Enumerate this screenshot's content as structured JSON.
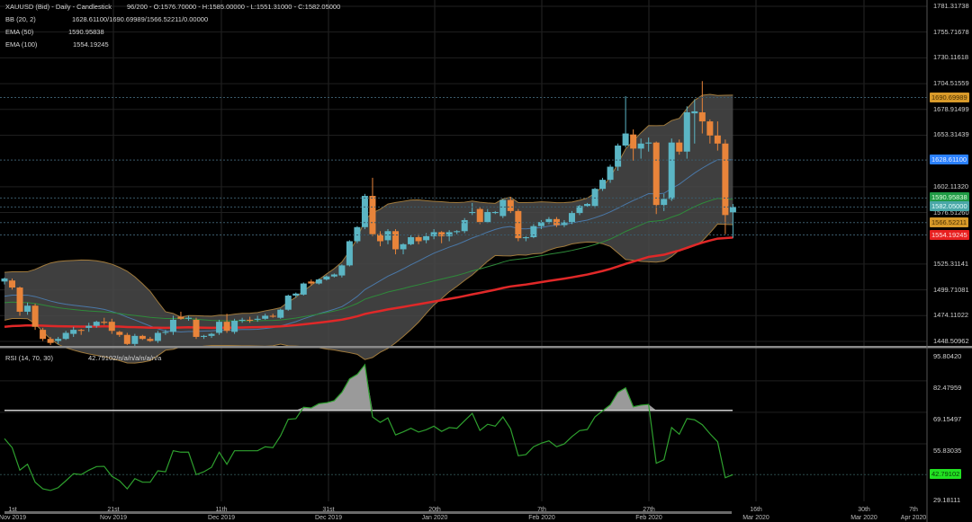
{
  "header": {
    "title": "XAUUSD (Bid) - Daily - Candlestick",
    "ohlc": "96/200 - O:1576.70000 - H:1585.00000 - L:1551.31000 - C:1582.05000",
    "indicators": [
      {
        "label": "BB (20, 2)",
        "value": "1628.61100/1690.69989/1566.52211/0.00000"
      },
      {
        "label": "EMA (50)",
        "value": "1590.95838"
      },
      {
        "label": "EMA (100)",
        "value": "1554.19245"
      }
    ],
    "rsi": {
      "label": "RSI (14, 70, 30)",
      "value": "42.79102/n/a/n/a/n/a/n/a"
    }
  },
  "colors": {
    "bull": "#5bb5c4",
    "bear": "#e8843a",
    "bb_band": "#a07a3c",
    "bb_mid": "#4a78a8",
    "ema50": "#2e8b3a",
    "ema100": "#e02828",
    "rsi": "#2ea02e"
  },
  "price_axis": {
    "ticks": [
      "1781.31738",
      "1755.71678",
      "1730.11618",
      "1704.51559",
      "1678.91499",
      "1653.31439",
      "1602.11320",
      "1576.51260",
      "1525.31141",
      "1499.71081",
      "1474.11022",
      "1448.50962"
    ],
    "markers": [
      {
        "label": "1690.69989",
        "value": 1690.7,
        "bg": "#d89a2a",
        "fg": "#4a3000"
      },
      {
        "label": "1628.61100",
        "value": 1628.61,
        "bg": "#2a80ff",
        "fg": "#e8f0ff"
      },
      {
        "label": "1590.95838",
        "value": 1590.96,
        "bg": "#1f9a45",
        "fg": "#e0ffe0"
      },
      {
        "label": "1582.05000",
        "value": 1582.05,
        "bg": "#4aa7a7",
        "fg": "#e8ffff"
      },
      {
        "label": "1566.52211",
        "value": 1566.52,
        "bg": "#d89a2a",
        "fg": "#4a3000"
      },
      {
        "label": "1554.19245",
        "value": 1554.19,
        "bg": "#e82020",
        "fg": "#ffe0e0"
      }
    ]
  },
  "rsi_axis": {
    "ticks": [
      "95.80420",
      "82.47959",
      "69.15497",
      "55.83035",
      "29.18111"
    ],
    "marker": {
      "label": "42.79102",
      "value": 42.79,
      "bg": "#22e022",
      "fg": "#064006"
    }
  },
  "time_axis": [
    {
      "day": "1st",
      "month": "Nov 2019"
    },
    {
      "day": "21st",
      "month": "Nov 2019"
    },
    {
      "day": "11th",
      "month": "Dec 2019"
    },
    {
      "day": "31st",
      "month": "Dec 2019"
    },
    {
      "day": "20th",
      "month": "Jan 2020"
    },
    {
      "day": "7th",
      "month": "Feb 2020"
    },
    {
      "day": "27th",
      "month": "Feb 2020"
    },
    {
      "day": "16th",
      "month": "Mar 2020"
    },
    {
      "day": "30th",
      "month": "Mar 2020"
    },
    {
      "day": "7th",
      "month": "Apr 2020"
    }
  ],
  "chart_data": {
    "type": "candlestick",
    "ylim": [
      1448.51,
      1781.32
    ],
    "rsi_ylim": [
      29.18,
      95.8
    ],
    "rsi_levels": [
      70,
      30
    ],
    "candles": [
      [
        1508,
        1512,
        1505,
        1511
      ],
      [
        1509,
        1511,
        1500,
        1502
      ],
      [
        1502,
        1503,
        1474,
        1478
      ],
      [
        1478,
        1487,
        1475,
        1484
      ],
      [
        1484,
        1486,
        1460,
        1463
      ],
      [
        1460,
        1462,
        1449,
        1451
      ],
      [
        1451,
        1453,
        1445,
        1447
      ],
      [
        1449,
        1453,
        1446,
        1451
      ],
      [
        1451,
        1459,
        1450,
        1457
      ],
      [
        1456,
        1463,
        1453,
        1460
      ],
      [
        1460,
        1461,
        1455,
        1459
      ],
      [
        1462,
        1467,
        1458,
        1464
      ],
      [
        1464,
        1469,
        1462,
        1468
      ],
      [
        1468,
        1472,
        1465,
        1467
      ],
      [
        1468,
        1471,
        1456,
        1459
      ],
      [
        1458,
        1459,
        1453,
        1455
      ],
      [
        1455,
        1457,
        1445,
        1446
      ],
      [
        1446,
        1456,
        1444,
        1454
      ],
      [
        1454,
        1455,
        1450,
        1451
      ],
      [
        1451,
        1453,
        1448,
        1449
      ],
      [
        1449,
        1459,
        1447,
        1457
      ],
      [
        1457,
        1460,
        1455,
        1458
      ],
      [
        1458,
        1474,
        1455,
        1470
      ],
      [
        1473,
        1478,
        1470,
        1471
      ],
      [
        1471,
        1474,
        1469,
        1472
      ],
      [
        1470,
        1472,
        1451,
        1453
      ],
      [
        1453,
        1455,
        1451,
        1454
      ],
      [
        1454,
        1457,
        1452,
        1456
      ],
      [
        1457,
        1470,
        1455,
        1468
      ],
      [
        1468,
        1476,
        1457,
        1459
      ],
      [
        1458,
        1471,
        1456,
        1469
      ],
      [
        1469,
        1472,
        1467,
        1470
      ],
      [
        1470,
        1473,
        1467,
        1469
      ],
      [
        1470,
        1474,
        1468,
        1471
      ],
      [
        1471,
        1476,
        1470,
        1474
      ],
      [
        1474,
        1476,
        1472,
        1473
      ],
      [
        1472,
        1481,
        1471,
        1480
      ],
      [
        1480,
        1495,
        1479,
        1494
      ],
      [
        1494,
        1497,
        1492,
        1496
      ],
      [
        1495,
        1507,
        1494,
        1506
      ],
      [
        1508,
        1510,
        1504,
        1506
      ],
      [
        1506,
        1511,
        1505,
        1510
      ],
      [
        1510,
        1514,
        1509,
        1513
      ],
      [
        1513,
        1516,
        1512,
        1515
      ],
      [
        1514,
        1525,
        1512,
        1524
      ],
      [
        1524,
        1549,
        1523,
        1548
      ],
      [
        1548,
        1563,
        1546,
        1562
      ],
      [
        1562,
        1595,
        1560,
        1593
      ],
      [
        1593,
        1611,
        1553,
        1555
      ],
      [
        1555,
        1558,
        1543,
        1548
      ],
      [
        1549,
        1560,
        1545,
        1558
      ],
      [
        1558,
        1560,
        1535,
        1540
      ],
      [
        1540,
        1546,
        1535,
        1545
      ],
      [
        1545,
        1554,
        1544,
        1552
      ],
      [
        1552,
        1555,
        1545,
        1548
      ],
      [
        1549,
        1556,
        1546,
        1553
      ],
      [
        1553,
        1560,
        1550,
        1557
      ],
      [
        1557,
        1558,
        1546,
        1553
      ],
      [
        1553,
        1559,
        1548,
        1557
      ],
      [
        1557,
        1559,
        1555,
        1558
      ],
      [
        1558,
        1571,
        1556,
        1569
      ],
      [
        1576,
        1586,
        1574,
        1577
      ],
      [
        1580,
        1582,
        1565,
        1567
      ],
      [
        1567,
        1580,
        1566,
        1577
      ],
      [
        1576,
        1578,
        1575,
        1577
      ],
      [
        1573,
        1590,
        1571,
        1589
      ],
      [
        1589,
        1592,
        1576,
        1578
      ],
      [
        1578,
        1580,
        1548,
        1551
      ],
      [
        1551,
        1553,
        1548,
        1552
      ],
      [
        1552,
        1565,
        1551,
        1563
      ],
      [
        1563,
        1569,
        1560,
        1567
      ],
      [
        1567,
        1572,
        1565,
        1570
      ],
      [
        1570,
        1572,
        1562,
        1564
      ],
      [
        1564,
        1569,
        1562,
        1567
      ],
      [
        1567,
        1578,
        1565,
        1576
      ],
      [
        1576,
        1584,
        1574,
        1583
      ],
      [
        1583,
        1586,
        1582,
        1585
      ],
      [
        1583,
        1601,
        1581,
        1600
      ],
      [
        1600,
        1611,
        1598,
        1609
      ],
      [
        1609,
        1624,
        1606,
        1622
      ],
      [
        1622,
        1645,
        1618,
        1643
      ],
      [
        1643,
        1692,
        1641,
        1655
      ],
      [
        1654,
        1659,
        1628,
        1640
      ],
      [
        1640,
        1650,
        1630,
        1645
      ],
      [
        1645,
        1651,
        1637,
        1646
      ],
      [
        1646,
        1647,
        1575,
        1584
      ],
      [
        1584,
        1595,
        1578,
        1590
      ],
      [
        1590,
        1650,
        1588,
        1646
      ],
      [
        1646,
        1649,
        1634,
        1637
      ],
      [
        1637,
        1682,
        1630,
        1676
      ],
      [
        1675,
        1689,
        1645,
        1677
      ],
      [
        1676,
        1707,
        1655,
        1667
      ],
      [
        1667,
        1669,
        1645,
        1653
      ],
      [
        1653,
        1667,
        1638,
        1645
      ],
      [
        1645,
        1649,
        1555,
        1574
      ],
      [
        1576.7,
        1585,
        1551.31,
        1582.05
      ]
    ],
    "rsi": [
      58.0,
      54.2,
      44.7,
      47.2,
      39.6,
      36.8,
      36.1,
      37.3,
      40.2,
      43.2,
      42.8,
      44.7,
      46.2,
      46.3,
      42.1,
      40.2,
      36.8,
      41.1,
      39.6,
      39.6,
      44.4,
      44.0,
      52.9,
      52.3,
      52.3,
      42.8,
      44.0,
      45.9,
      52.3,
      47.2,
      52.9,
      52.9,
      52.9,
      52.9,
      54.6,
      54.2,
      59.2,
      66.2,
      66.5,
      71.3,
      71.0,
      72.8,
      73.2,
      74.1,
      77.6,
      83.3,
      85.2,
      89.3,
      67.2,
      64.9,
      66.8,
      59.6,
      60.9,
      62.4,
      60.8,
      61.8,
      63.3,
      61.1,
      62.7,
      62.4,
      65.6,
      68.7,
      61.5,
      64.1,
      63.3,
      67.2,
      62.2,
      50.8,
      51.3,
      54.6,
      56.1,
      57.1,
      54.6,
      55.8,
      58.9,
      61.4,
      61.9,
      67.2,
      69.8,
      72.3,
      77.6,
      79.5,
      71.5,
      72.2,
      72.5,
      47.6,
      49.1,
      62.7,
      59.9,
      66.5,
      66.0,
      63.9,
      60.1,
      56.7,
      41.5,
      42.79
    ]
  }
}
